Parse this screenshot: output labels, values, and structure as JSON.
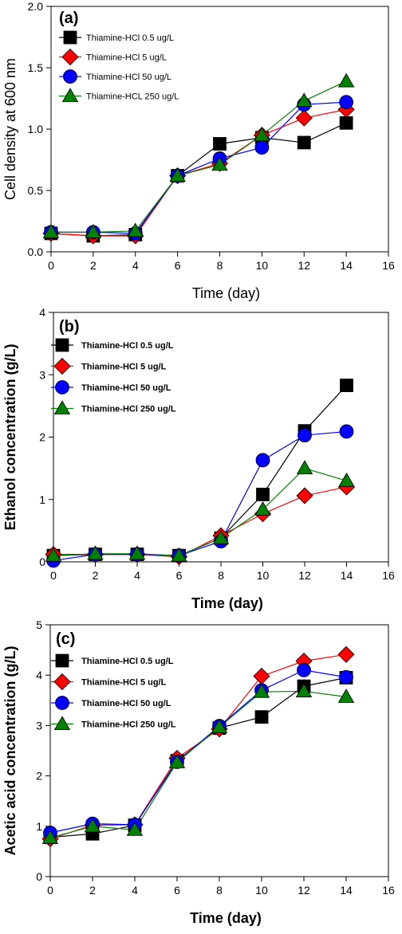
{
  "colors": {
    "square": "#000000",
    "diamond": "#ff0000",
    "circle": "#0000ff",
    "triangle": "#008000"
  },
  "chart_data": [
    {
      "type": "line",
      "panel_label": "(a)",
      "xlabel": "Time (day)",
      "ylabel": "Cell density at 600 nm",
      "xlim": [
        0,
        16
      ],
      "ylim": [
        0.0,
        2.0
      ],
      "xticks": [
        "0",
        "2",
        "4",
        "6",
        "8",
        "10",
        "12",
        "14",
        "16"
      ],
      "yticks": [
        "0.0",
        "0.5",
        "1.0",
        "1.5",
        "2.0"
      ],
      "legend_position": "top-left",
      "x": [
        0,
        2,
        4,
        6,
        8,
        10,
        12,
        14
      ],
      "series": [
        {
          "name": "Thiamine-HCl 0.5 ug/L",
          "marker": "square",
          "values": [
            0.15,
            0.13,
            0.14,
            0.62,
            0.88,
            0.93,
            0.89,
            1.05
          ]
        },
        {
          "name": "Thiamine-HCl 5 ug/L",
          "marker": "diamond",
          "values": [
            0.15,
            0.13,
            0.13,
            0.62,
            0.72,
            0.95,
            1.09,
            1.16
          ]
        },
        {
          "name": "Thiamine-HCl 50 ug/L",
          "marker": "circle",
          "values": [
            0.16,
            0.16,
            0.15,
            0.62,
            0.76,
            0.85,
            1.2,
            1.22
          ]
        },
        {
          "name": "Thiamine-HCL 250 ug/L",
          "marker": "triangle",
          "values": [
            0.16,
            0.16,
            0.17,
            0.62,
            0.71,
            0.95,
            1.23,
            1.39
          ]
        }
      ]
    },
    {
      "type": "line",
      "panel_label": "(b)",
      "xlabel": "Time (day)",
      "ylabel": "Ethanol concentration (g/L)",
      "xlim": [
        0,
        16
      ],
      "ylim": [
        0,
        4
      ],
      "xticks": [
        "0",
        "2",
        "4",
        "6",
        "8",
        "10",
        "12",
        "14",
        "16"
      ],
      "yticks": [
        "0",
        "1",
        "2",
        "3",
        "4"
      ],
      "legend_position": "top-left",
      "x": [
        0,
        2,
        4,
        6,
        8,
        10,
        12,
        14
      ],
      "series": [
        {
          "name": "Thiamine-HCl 0.5 ug/L",
          "marker": "square",
          "values": [
            0.1,
            0.12,
            0.12,
            0.1,
            0.38,
            1.08,
            2.1,
            2.83
          ]
        },
        {
          "name": "Thiamine-HCl 5 ug/L",
          "marker": "diamond",
          "values": [
            0.12,
            0.12,
            0.12,
            0.08,
            0.42,
            0.77,
            1.06,
            1.2
          ]
        },
        {
          "name": "Thiamine-HCl 50 ug/L",
          "marker": "circle",
          "values": [
            0.02,
            0.12,
            0.12,
            0.1,
            0.33,
            1.63,
            2.03,
            2.09
          ]
        },
        {
          "name": "Thiamine-HCl 250 ug/L",
          "marker": "triangle",
          "values": [
            0.1,
            0.13,
            0.13,
            0.1,
            0.38,
            0.84,
            1.5,
            1.3
          ]
        }
      ]
    },
    {
      "type": "line",
      "panel_label": "(c)",
      "xlabel": "Time (day)",
      "ylabel": "Acetic acid concentration (g/L)",
      "xlim": [
        0,
        16
      ],
      "ylim": [
        0,
        5
      ],
      "xticks": [
        "0",
        "2",
        "4",
        "6",
        "8",
        "10",
        "12",
        "14",
        "16"
      ],
      "yticks": [
        "0",
        "1",
        "2",
        "3",
        "4",
        "5"
      ],
      "legend_position": "top-left",
      "x": [
        0,
        2,
        4,
        6,
        8,
        10,
        12,
        14
      ],
      "series": [
        {
          "name": "Thiamine-HCl 0.5 ug/L",
          "marker": "square",
          "values": [
            0.78,
            0.85,
            1.02,
            2.3,
            2.95,
            3.17,
            3.78,
            3.95
          ]
        },
        {
          "name": "Thiamine-HCl 5 ug/L",
          "marker": "diamond",
          "values": [
            0.75,
            1.02,
            1.03,
            2.35,
            2.93,
            3.98,
            4.28,
            4.41
          ]
        },
        {
          "name": "Thiamine-HCl 50 ug/L",
          "marker": "circle",
          "values": [
            0.87,
            1.05,
            1.03,
            2.28,
            2.99,
            3.7,
            4.1,
            3.96
          ]
        },
        {
          "name": "Thiamine-HCl 250 ug/L",
          "marker": "triangle",
          "values": [
            0.77,
            1.0,
            0.93,
            2.27,
            2.97,
            3.67,
            3.68,
            3.57
          ]
        }
      ]
    }
  ]
}
